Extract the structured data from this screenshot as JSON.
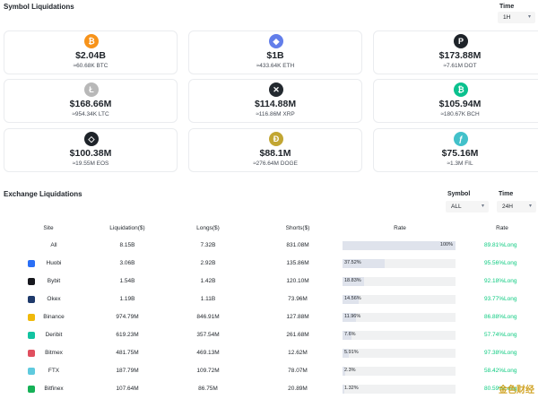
{
  "symbol_section": {
    "title": "Symbol Liquidations",
    "time_label": "Time",
    "time_value": "1H"
  },
  "cards": [
    {
      "amount": "$2.04B",
      "sub": "≈60.68K BTC",
      "icon": "bitcoin-icon",
      "glyph": "₿",
      "color": "#f7931a"
    },
    {
      "amount": "$1B",
      "sub": "≈433.64K ETH",
      "icon": "ethereum-icon",
      "glyph": "◆",
      "color": "#627eea"
    },
    {
      "amount": "$173.88M",
      "sub": "≈7.61M DOT",
      "icon": "polkadot-icon",
      "glyph": "P",
      "color": "#1e2329"
    },
    {
      "amount": "$168.66M",
      "sub": "≈954.34K LTC",
      "icon": "litecoin-icon",
      "glyph": "Ł",
      "color": "#b8b8b8"
    },
    {
      "amount": "$114.88M",
      "sub": "≈116.86M XRP",
      "icon": "xrp-icon",
      "glyph": "✕",
      "color": "#23292f"
    },
    {
      "amount": "$105.94M",
      "sub": "≈180.67K BCH",
      "icon": "bitcoin-cash-icon",
      "glyph": "₿",
      "color": "#0ac18e"
    },
    {
      "amount": "$100.38M",
      "sub": "≈19.55M EOS",
      "icon": "eos-icon",
      "glyph": "◇",
      "color": "#1e2329"
    },
    {
      "amount": "$88.1M",
      "sub": "≈276.64M DOGE",
      "icon": "dogecoin-icon",
      "glyph": "Ð",
      "color": "#c2a633"
    },
    {
      "amount": "$75.16M",
      "sub": "≈1.3M FIL",
      "icon": "filecoin-icon",
      "glyph": "ƒ",
      "color": "#42c1ca"
    }
  ],
  "exchange_section": {
    "title": "Exchange Liquidations",
    "symbol_label": "Symbol",
    "symbol_value": "ALL",
    "time_label": "Time",
    "time_value": "24H"
  },
  "table": {
    "headers": {
      "site": "Site",
      "liquidation": "Liquidation($)",
      "longs": "Longs($)",
      "shorts": "Shorts($)",
      "rate_bar": "Rate",
      "rate": "Rate"
    },
    "rows": [
      {
        "site": "All",
        "liquidation": "8.15B",
        "longs": "7.32B",
        "shorts": "831.08M",
        "bar_pct_label": "100%",
        "bar_pct": 100,
        "rate": "89.81%Long",
        "logo": "",
        "logo_color": ""
      },
      {
        "site": "Huobi",
        "liquidation": "3.06B",
        "longs": "2.92B",
        "shorts": "135.86M",
        "bar_pct_label": "37.52%",
        "bar_pct": 37.52,
        "rate": "95.56%Long",
        "logo": "huobi-logo-icon",
        "logo_color": "#2a6ff6"
      },
      {
        "site": "Bybit",
        "liquidation": "1.54B",
        "longs": "1.42B",
        "shorts": "120.10M",
        "bar_pct_label": "18.83%",
        "bar_pct": 18.83,
        "rate": "92.18%Long",
        "logo": "bybit-logo-icon",
        "logo_color": "#17181e"
      },
      {
        "site": "Okex",
        "liquidation": "1.19B",
        "longs": "1.11B",
        "shorts": "73.96M",
        "bar_pct_label": "14.56%",
        "bar_pct": 14.56,
        "rate": "93.77%Long",
        "logo": "okex-logo-icon",
        "logo_color": "#1f3a6b"
      },
      {
        "site": "Binance",
        "liquidation": "974.79M",
        "longs": "846.91M",
        "shorts": "127.88M",
        "bar_pct_label": "11.96%",
        "bar_pct": 11.96,
        "rate": "86.88%Long",
        "logo": "binance-logo-icon",
        "logo_color": "#f0b90b"
      },
      {
        "site": "Deribit",
        "liquidation": "619.23M",
        "longs": "357.54M",
        "shorts": "261.68M",
        "bar_pct_label": "7.6%",
        "bar_pct": 7.6,
        "rate": "57.74%Long",
        "logo": "deribit-logo-icon",
        "logo_color": "#13c3a1"
      },
      {
        "site": "Bitmex",
        "liquidation": "481.75M",
        "longs": "469.13M",
        "shorts": "12.62M",
        "bar_pct_label": "5.91%",
        "bar_pct": 5.91,
        "rate": "97.38%Long",
        "logo": "bitmex-logo-icon",
        "logo_color": "#e04f5f"
      },
      {
        "site": "FTX",
        "liquidation": "187.79M",
        "longs": "109.72M",
        "shorts": "78.07M",
        "bar_pct_label": "2.3%",
        "bar_pct": 2.3,
        "rate": "58.42%Long",
        "logo": "ftx-logo-icon",
        "logo_color": "#5fcade"
      },
      {
        "site": "Bitfinex",
        "liquidation": "107.64M",
        "longs": "86.75M",
        "shorts": "20.89M",
        "bar_pct_label": "1.32%",
        "bar_pct": 1.32,
        "rate": "80.59%Long",
        "logo": "bitfinex-logo-icon",
        "logo_color": "#16b157"
      }
    ]
  },
  "watermark": "金色财经"
}
